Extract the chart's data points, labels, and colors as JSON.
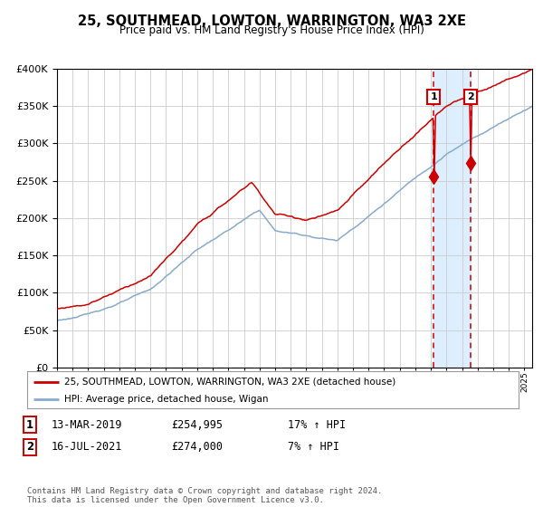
{
  "title": "25, SOUTHMEAD, LOWTON, WARRINGTON, WA3 2XE",
  "subtitle": "Price paid vs. HM Land Registry's House Price Index (HPI)",
  "legend_line1": "25, SOUTHMEAD, LOWTON, WARRINGTON, WA3 2XE (detached house)",
  "legend_line2": "HPI: Average price, detached house, Wigan",
  "annotation1_date": "13-MAR-2019",
  "annotation1_price": "£254,995",
  "annotation1_hpi": "17% ↑ HPI",
  "annotation2_date": "16-JUL-2021",
  "annotation2_price": "£274,000",
  "annotation2_hpi": "7% ↑ HPI",
  "footer": "Contains HM Land Registry data © Crown copyright and database right 2024.\nThis data is licensed under the Open Government Licence v3.0.",
  "red_color": "#cc0000",
  "blue_color": "#88aacc",
  "bg_color": "#ffffff",
  "grid_color": "#cccccc",
  "shade_color": "#ddeeff",
  "date1_x": 2019.19,
  "date2_x": 2021.54,
  "price1": 254995,
  "price2": 274000,
  "xmin": 1995.0,
  "xmax": 2025.5,
  "ymin": 0,
  "ymax": 400000
}
